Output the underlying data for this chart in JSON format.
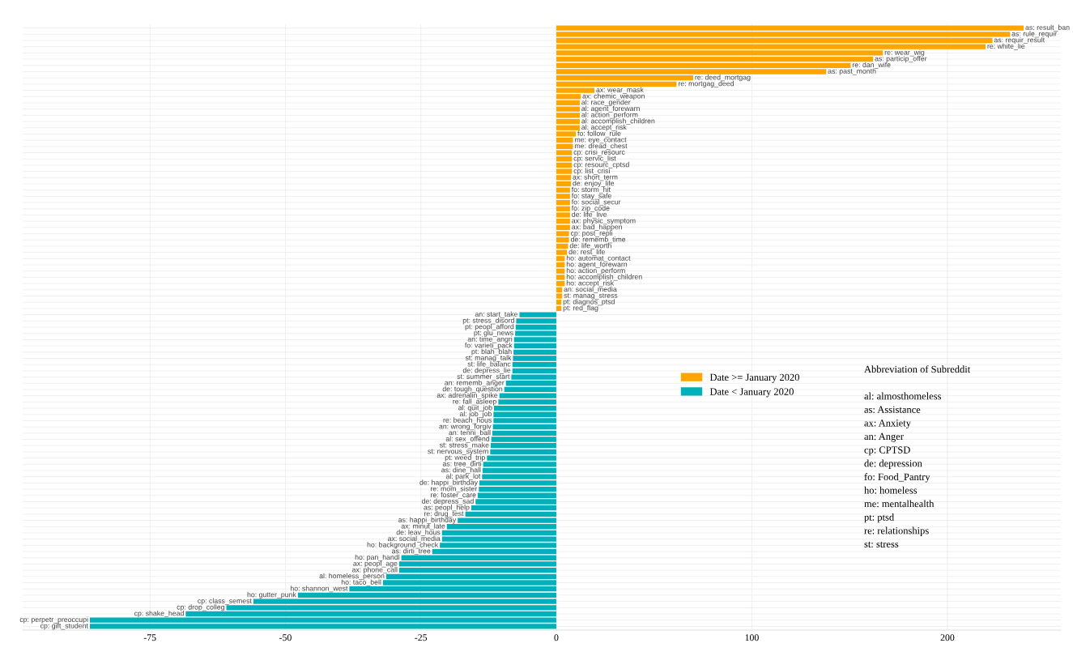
{
  "chart_data": [
    {
      "type": "bar",
      "orientation": "horizontal",
      "categories": [
        null,
        null,
        null,
        null,
        null,
        null,
        null,
        null,
        null,
        null,
        null,
        null,
        null,
        null,
        null,
        null,
        null,
        null,
        null,
        null,
        null,
        null,
        null,
        null,
        null,
        null,
        null,
        null,
        null,
        null,
        null,
        null,
        null,
        null,
        null,
        null,
        null,
        null,
        null,
        null,
        null,
        null,
        null,
        null,
        null,
        null,
        "an: start_take",
        "pt: stress_disord",
        "pt: peopl_afford",
        "pt: glu_news",
        "an: time_angri",
        "fo: varieti_pack",
        "pt: blah_blah",
        "st: manag_talk",
        "st: life_balanc",
        "de: depress_lie",
        "st: summer_start",
        "an: rememb_anger",
        "de: tough_question",
        "ax: adrenalin_spike",
        "re: fall_asleep",
        "al: quit_job",
        "al: job_job",
        "re: beach_hous",
        "an: wrong_forgiv",
        "an: tenni_ball",
        "al: sex_offend",
        "st: stress_make",
        "st: nervous_system",
        "pt: weed_trip",
        "as: tree_dirti",
        "as: dine_hall",
        "al: park_lot",
        "de: happi_birthday",
        "re: mom_sister",
        "re: foster_care",
        "de: depress_sad",
        "as: peopl_help",
        "re: drug_test",
        "as: happi_birthday",
        "ax: minut_late",
        "de: leav_hous",
        "ax: social_media",
        "ho: background_check",
        "as: dirti_tree",
        "ho: pan_handl",
        "ax: peopl_age",
        "ax: phone_call",
        "al: homeless_person",
        "ho: taco_bell",
        "ho: shannon_west",
        "ho: gutter_punk",
        "cp: class_semest",
        "cp: drop_colleg",
        "cp: shake_head",
        "cp: perpetr_preoccupi",
        "cp: gift_student"
      ],
      "series": [
        {
          "name": "Date < January 2020",
          "color": "#00b0bb",
          "values": [
            null,
            null,
            null,
            null,
            null,
            null,
            null,
            null,
            null,
            null,
            null,
            null,
            null,
            null,
            null,
            null,
            null,
            null,
            null,
            null,
            null,
            null,
            null,
            null,
            null,
            null,
            null,
            null,
            null,
            null,
            null,
            null,
            null,
            null,
            null,
            null,
            null,
            null,
            null,
            null,
            null,
            null,
            null,
            null,
            null,
            null,
            -6.8,
            -7.4,
            -7.5,
            -7.6,
            -7.8,
            -7.8,
            -7.9,
            -8.0,
            -8.1,
            -8.1,
            -8.3,
            -9.3,
            -9.6,
            -10.5,
            -10.7,
            -11.5,
            -11.6,
            -11.6,
            -11.7,
            -11.8,
            -12.0,
            -12.1,
            -12.2,
            -12.8,
            -13.5,
            -13.6,
            -13.7,
            -14.2,
            -14.3,
            -14.5,
            -14.9,
            -15.7,
            -16.8,
            -18.2,
            -20.2,
            -21.1,
            -21.1,
            -21.5,
            -22.9,
            -28.6,
            -29.0,
            -29.0,
            -31.4,
            -32.0,
            -38.2,
            -47.7,
            -55.9,
            -60.9,
            -68.4,
            -86.1,
            -86.1
          ]
        }
      ],
      "xlim": [
        -98.5,
        0
      ],
      "xticks": [
        -75,
        -50,
        -25,
        0
      ],
      "grid": true,
      "tick_labels": "x"
    },
    {
      "type": "bar",
      "orientation": "horizontal",
      "categories": [
        "as: result_ban",
        "as: rule_requir",
        "as: requir_result",
        "re: white_lie",
        "re: wear_wig",
        "as: particip_offer",
        "re: dan_wife",
        "as: past_month",
        "re: deed_mortgag",
        "re: mortgag_deed",
        "ax: wear_mask",
        "ax: chemic_weapon",
        "al: race_gender",
        "al: agent_forewarn",
        "al: action_perform",
        "al: accomplish_children",
        "al: accept_risk",
        "fo: follow_rule",
        "me: eye_contact",
        "me: dread_chest",
        "cp: crisi_resourc",
        "cp: servic_list",
        "cp: resourc_cptsd",
        "cp: list_crisi",
        "ax: short_term",
        "de: enjoy_life",
        "fo: storm_hit",
        "fo: stay_safe",
        "fo: social_secur",
        "fo: zip_code",
        "de: life_live",
        "ax: physic_symptom",
        "ax: bad_happen",
        "cp: post_repli",
        "de: rememb_time",
        "de: life_worth",
        "de: rest_life",
        "ho: automat_contact",
        "ho: agent_forewarn",
        "ho: action_perform",
        "ho: accomplish_children",
        "ho: accept_risk",
        "an: social_media",
        "st: manag_stress",
        "pt: diagnos_ptsd",
        "pt: red_flag",
        null,
        null,
        null,
        null,
        null,
        null,
        null,
        null,
        null,
        null,
        null,
        null,
        null,
        null,
        null,
        null,
        null,
        null,
        null,
        null,
        null,
        null,
        null,
        null,
        null,
        null,
        null,
        null,
        null,
        null,
        null,
        null,
        null,
        null,
        null,
        null,
        null,
        null,
        null,
        null,
        null,
        null,
        null,
        null,
        null,
        null,
        null,
        null,
        null,
        null,
        null
      ],
      "series": [
        {
          "name": "Date >= January 2020",
          "color": "#ffa500",
          "values": [
            239,
            232,
            223,
            219.5,
            167,
            162,
            150.5,
            138,
            70,
            61.5,
            19.5,
            12.5,
            12,
            12,
            12,
            12,
            12,
            10,
            8.5,
            8.5,
            8,
            8,
            8,
            8,
            7.5,
            7.5,
            7,
            7,
            7,
            7,
            7,
            7,
            7,
            6.5,
            6.5,
            6,
            5.5,
            4.3,
            4.3,
            4.3,
            4.3,
            4.3,
            3,
            3,
            2.6,
            2.6,
            null,
            null,
            null,
            null,
            null,
            null,
            null,
            null,
            null,
            null,
            null,
            null,
            null,
            null,
            null,
            null,
            null,
            null,
            null,
            null,
            null,
            null,
            null,
            null,
            null,
            null,
            null,
            null,
            null,
            null,
            null,
            null,
            null,
            null,
            null,
            null,
            null,
            null,
            null,
            null,
            null,
            null,
            null,
            null,
            null,
            null,
            null,
            null,
            null,
            null,
            null
          ]
        }
      ],
      "xlim": [
        0,
        258
      ],
      "xticks": [
        100,
        200
      ],
      "grid": true,
      "legend": "left",
      "tick_labels": "x",
      "annotations": [
        "Abbreviation of Subreddit",
        "al: almosthomeless",
        "as: Assistance",
        "ax: Anxiety",
        "an: Anger",
        "cp: CPTSD",
        "de: depression",
        "fo: Food_Pantry",
        "ho: homeless",
        "me: mentalhealth",
        "pt: ptsd",
        "re: relationships",
        "st: stress"
      ]
    }
  ]
}
